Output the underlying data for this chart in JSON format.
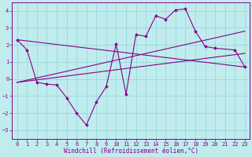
{
  "xlabel": "Windchill (Refroidissement éolien,°C)",
  "xlim": [
    -0.5,
    23.5
  ],
  "ylim": [
    -3.5,
    4.5
  ],
  "yticks": [
    -3,
    -2,
    -1,
    0,
    1,
    2,
    3,
    4
  ],
  "xticks": [
    0,
    1,
    2,
    3,
    4,
    5,
    6,
    7,
    8,
    9,
    10,
    11,
    12,
    13,
    14,
    15,
    16,
    17,
    18,
    19,
    20,
    21,
    22,
    23
  ],
  "bg_color": "#c0ecee",
  "grid_color": "#90d4d8",
  "line_color": "#880088",
  "main_x": [
    0,
    1,
    2,
    3,
    4,
    5,
    6,
    7,
    8,
    9,
    10,
    11,
    12,
    13,
    14,
    15,
    16,
    17,
    18,
    19,
    20,
    22,
    23
  ],
  "main_y": [
    2.3,
    1.7,
    -0.2,
    -0.3,
    -0.35,
    -1.1,
    -2.0,
    -2.7,
    -1.35,
    -0.45,
    2.05,
    -0.9,
    2.6,
    2.5,
    3.7,
    3.5,
    4.05,
    4.1,
    2.8,
    1.9,
    1.8,
    1.7,
    0.7
  ],
  "trend1_x": [
    0,
    23
  ],
  "trend1_y": [
    2.3,
    0.7
  ],
  "trend2_x": [
    0,
    23
  ],
  "trend2_y": [
    -0.2,
    2.8
  ],
  "trend3_x": [
    0,
    23
  ],
  "trend3_y": [
    -0.2,
    1.5
  ]
}
